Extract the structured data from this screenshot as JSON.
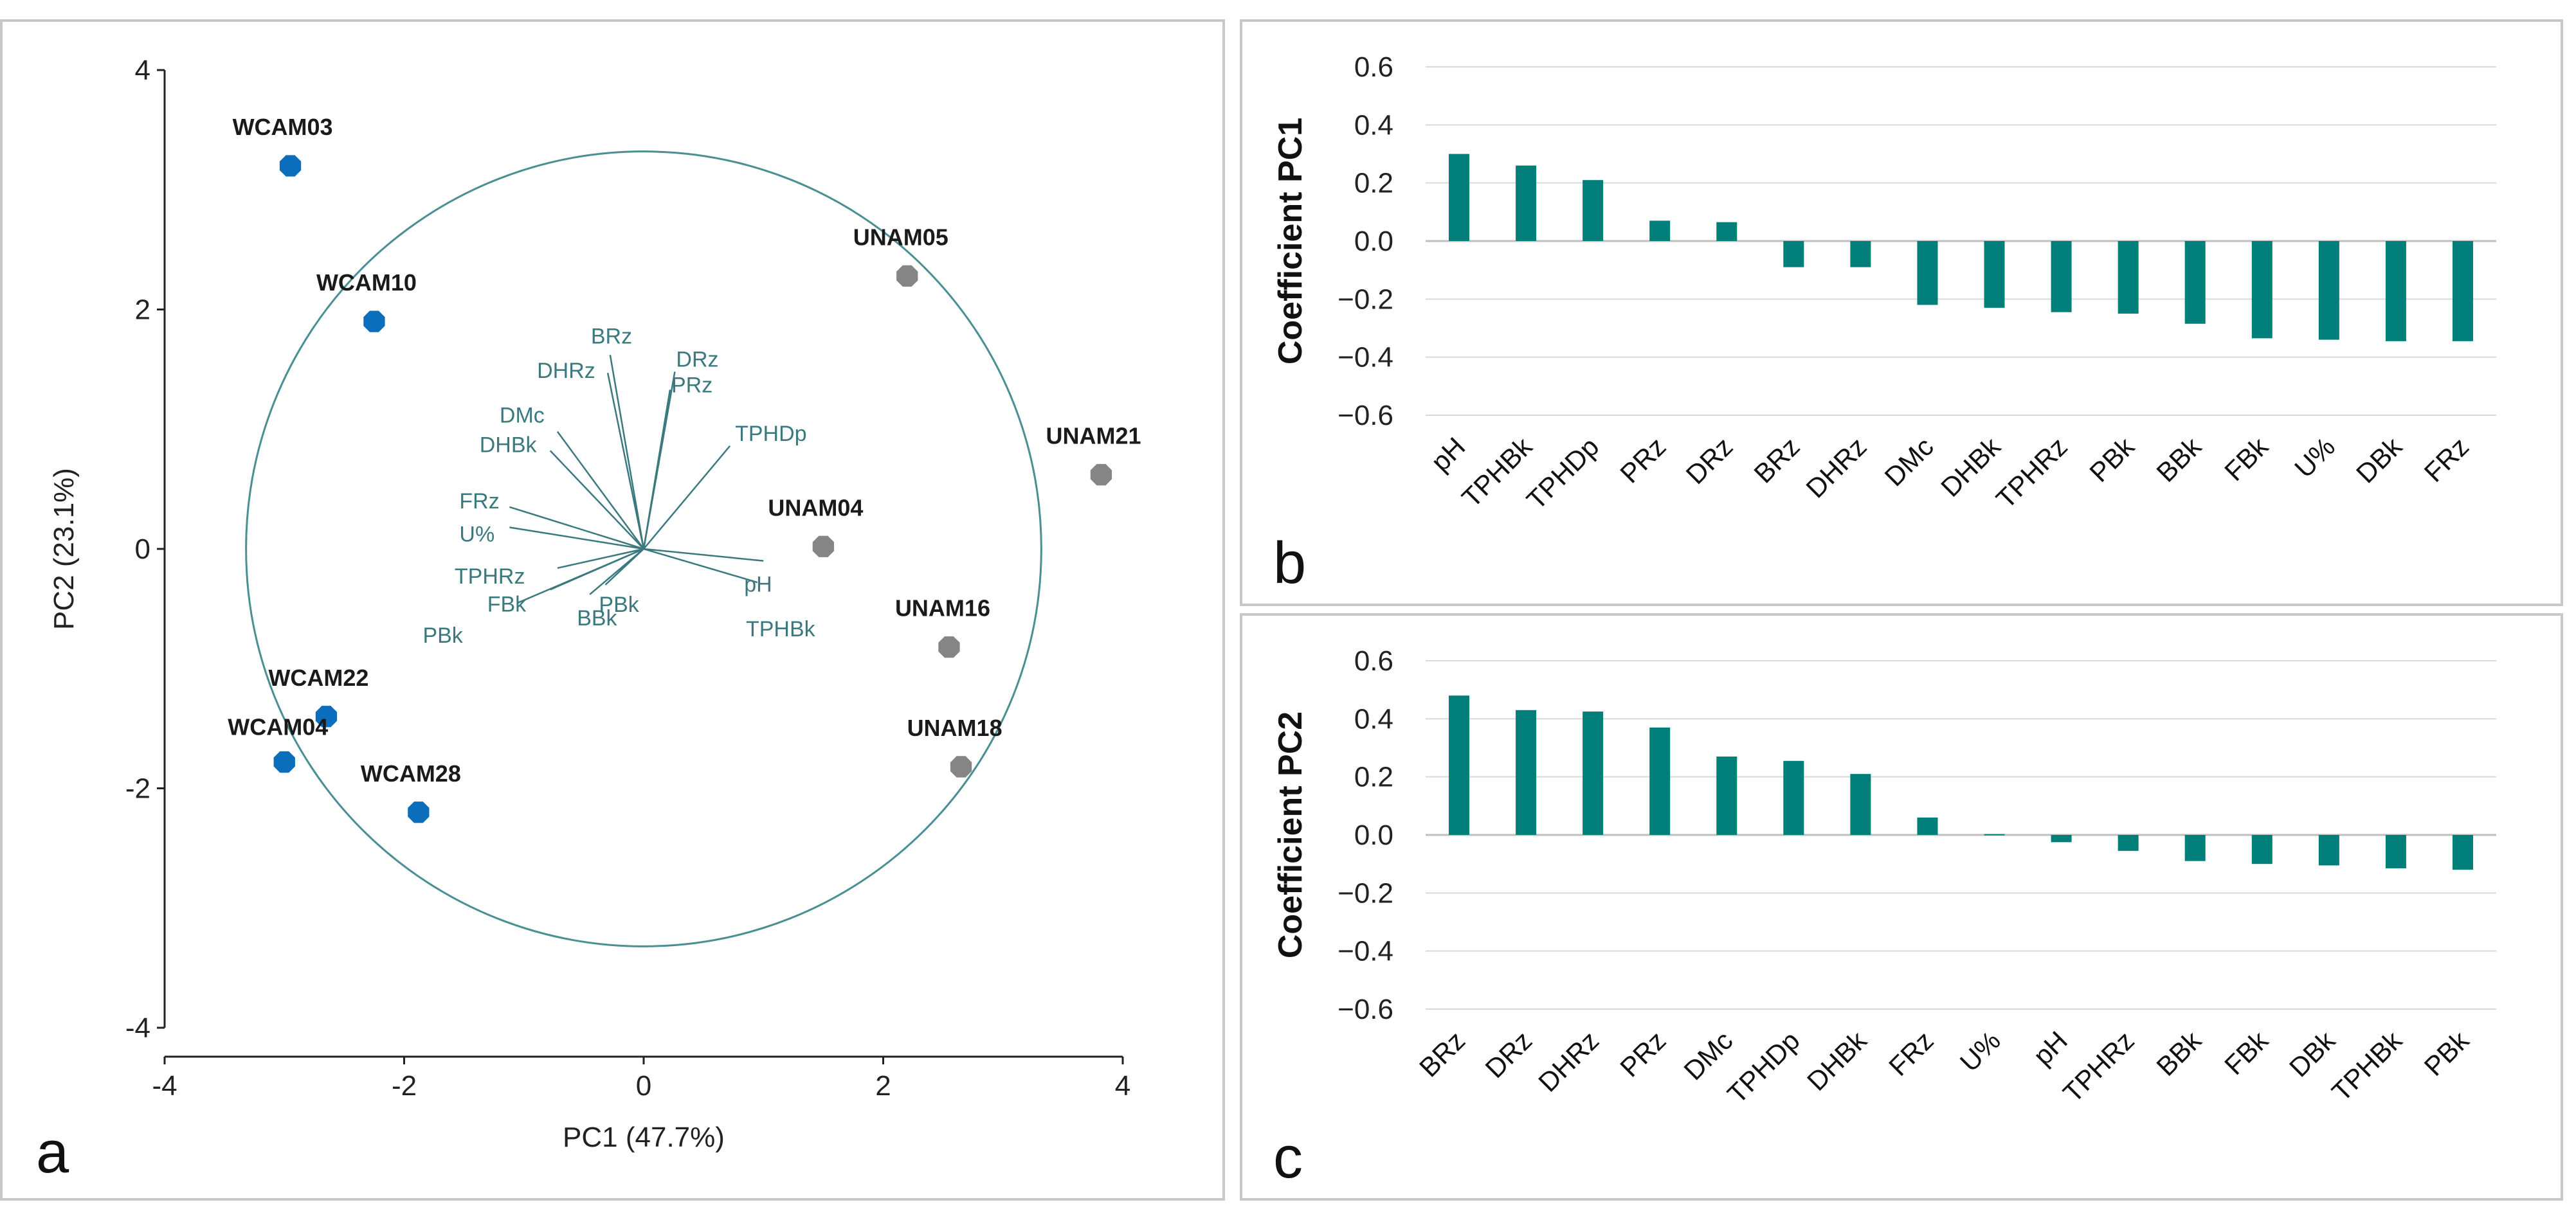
{
  "colors": {
    "teal": "#007f7a",
    "loading_line": "#3a7a7e",
    "circle": "#4a8f92",
    "wcam": "#0a6ebd",
    "unam": "#858585",
    "grid": "#d9d9d9",
    "axis": "#222222"
  },
  "chart_data": [
    {
      "type": "scatter",
      "panel_letter": "a",
      "title": "",
      "xlabel": "PC1 (47.7%)",
      "ylabel": "PC2 (23.1%)",
      "xlim": [
        -4,
        4
      ],
      "ylim": [
        -4,
        4
      ],
      "xticks": [
        -4,
        -2,
        0,
        2,
        4
      ],
      "yticks": [
        4,
        2,
        0,
        -2,
        -4
      ],
      "series": [
        {
          "name": "WCAM",
          "points": [
            {
              "label": "WCAM03",
              "x": -2.95,
              "y": 3.2
            },
            {
              "label": "WCAM10",
              "x": -2.25,
              "y": 1.9
            },
            {
              "label": "WCAM22",
              "x": -2.65,
              "y": -1.4
            },
            {
              "label": "WCAM04",
              "x": -3.0,
              "y": -1.78
            },
            {
              "label": "WCAM28",
              "x": -1.88,
              "y": -2.2
            }
          ]
        },
        {
          "name": "UNAM",
          "points": [
            {
              "label": "UNAM05",
              "x": 2.2,
              "y": 2.28
            },
            {
              "label": "UNAM21",
              "x": 3.82,
              "y": 0.62
            },
            {
              "label": "UNAM04",
              "x": 1.5,
              "y": 0.02
            },
            {
              "label": "UNAM16",
              "x": 2.55,
              "y": -0.82
            },
            {
              "label": "UNAM18",
              "x": 2.65,
              "y": -1.82
            }
          ]
        }
      ],
      "correlation_circle": {
        "cx": 0.0,
        "cy": 0.0,
        "r": 3.32
      },
      "loadings": [
        {
          "label": "BRz",
          "x": -0.28,
          "y": 1.62
        },
        {
          "label": "DHRz",
          "x": -0.3,
          "y": 1.47
        },
        {
          "label": "DRz",
          "x": 0.26,
          "y": 1.48
        },
        {
          "label": "PRz",
          "x": 0.22,
          "y": 1.33
        },
        {
          "label": "TPHDp",
          "x": 0.72,
          "y": 0.86
        },
        {
          "label": "DMc",
          "x": -0.72,
          "y": 0.98
        },
        {
          "label": "DHBk",
          "x": -0.78,
          "y": 0.82
        },
        {
          "label": "FRz",
          "x": -1.12,
          "y": 0.35
        },
        {
          "label": "U%",
          "x": -1.12,
          "y": 0.18
        },
        {
          "label": "TPHRz",
          "x": -0.72,
          "y": -0.16
        },
        {
          "label": "FBk",
          "x": -0.78,
          "y": -0.34
        },
        {
          "label": "PBk",
          "x": -1.05,
          "y": -0.45
        },
        {
          "label": "BBk",
          "x": -0.45,
          "y": -0.38
        },
        {
          "label": "PBk",
          "x": -0.32,
          "y": -0.3
        },
        {
          "label": "pH",
          "x": 1.0,
          "y": -0.1
        },
        {
          "label": "TPHBk",
          "x": 0.95,
          "y": -0.28
        }
      ]
    },
    {
      "type": "bar",
      "panel_letter": "b",
      "title": "",
      "xlabel": "",
      "ylabel": "Coefficient PC1",
      "ylim": [
        -0.6,
        0.6
      ],
      "yticks": [
        "0.6",
        "0.4",
        "0.2",
        "0.0",
        "−0.2",
        "−0.4",
        "−0.6"
      ],
      "categories": [
        "pH",
        "TPHBk",
        "TPHDp",
        "PRz",
        "DRz",
        "BRz",
        "DHRz",
        "DMc",
        "DHBk",
        "TPHRz",
        "PBk",
        "BBk",
        "FBk",
        "U%",
        "DBk",
        "FRz"
      ],
      "values": [
        0.3,
        0.26,
        0.21,
        0.07,
        0.065,
        -0.09,
        -0.09,
        -0.22,
        -0.23,
        -0.245,
        -0.25,
        -0.285,
        -0.335,
        -0.34,
        -0.345,
        -0.345
      ]
    },
    {
      "type": "bar",
      "panel_letter": "c",
      "title": "",
      "xlabel": "",
      "ylabel": "Coefficient PC2",
      "ylim": [
        -0.6,
        0.6
      ],
      "yticks": [
        "0.6",
        "0.4",
        "0.2",
        "0.0",
        "−0.2",
        "−0.4",
        "−0.6"
      ],
      "categories": [
        "BRz",
        "DRz",
        "DHRz",
        "PRz",
        "DMc",
        "TPHDp",
        "DHBk",
        "FRz",
        "U%",
        "pH",
        "TPHRz",
        "BBk",
        "FBk",
        "DBk",
        "TPHBk",
        "PBk"
      ],
      "values": [
        0.48,
        0.43,
        0.425,
        0.37,
        0.27,
        0.255,
        0.21,
        0.06,
        0.003,
        -0.025,
        -0.055,
        -0.09,
        -0.1,
        -0.105,
        -0.115,
        -0.12
      ]
    }
  ]
}
